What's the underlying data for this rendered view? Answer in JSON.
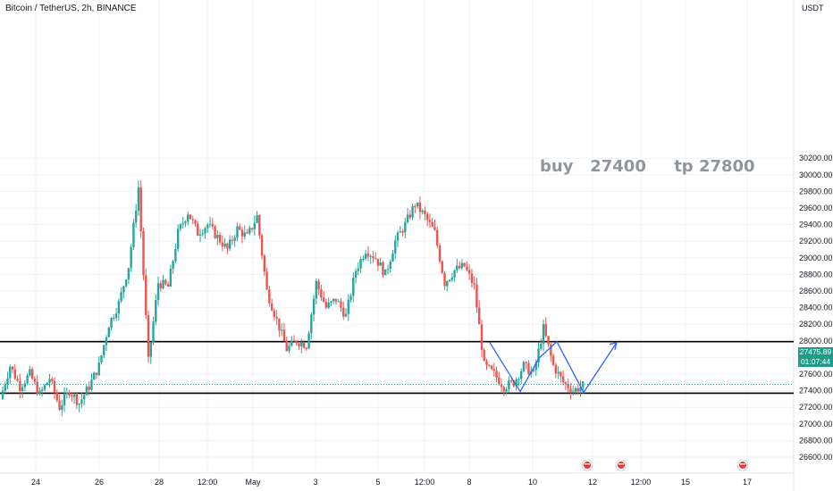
{
  "header": {
    "title": "Bitcoin / TetherUS, 2h, BINANCE"
  },
  "price_axis": {
    "unit": "USDT",
    "ticks": [
      "30200.00",
      "30000.00",
      "29800.00",
      "29600.00",
      "29400.00",
      "29200.00",
      "29000.00",
      "28800.00",
      "28600.00",
      "28400.00",
      "28200.00",
      "28000.00",
      "27800.00",
      "27600.00",
      "27400.00",
      "27200.00",
      "27000.00",
      "26800.00",
      "26600.00"
    ]
  },
  "time_axis": {
    "ticks": [
      "24",
      "26",
      "28",
      "12:00",
      "May",
      "3",
      "5",
      "12:00",
      "8",
      "10",
      "12",
      "12:00",
      "15",
      "17"
    ]
  },
  "annotation": {
    "text": "buy   27400     tp 27800"
  },
  "current_price": {
    "price": "27475.89",
    "countdown": "01:07:44"
  },
  "colors": {
    "up": "#26a69a",
    "down": "#ef5350",
    "arrow": "#2962ff",
    "level_line": "#000000",
    "price_tag": "#1f9d8a"
  },
  "chart_data": {
    "type": "candlestick",
    "title": "Bitcoin / TetherUS, 2h, BINANCE",
    "y_unit": "USDT",
    "ylim": [
      26500,
      30320
    ],
    "horizontal_levels": [
      27990,
      27370
    ],
    "current_price": 27475.89,
    "projection_path": [
      27980,
      27380,
      27800,
      27380,
      27990,
      27380,
      27980
    ],
    "x_tick_labels": [
      "24",
      "26",
      "28",
      "12:00",
      "May",
      "3",
      "5",
      "12:00",
      "8",
      "10",
      "12",
      "12:00",
      "15",
      "17"
    ],
    "price_path": [
      [
        27300,
        27700
      ],
      [
        27700,
        27450
      ],
      [
        27450,
        27600
      ],
      [
        27600,
        27350
      ],
      [
        27350,
        27550
      ],
      [
        27550,
        27200
      ],
      [
        27200,
        27400
      ],
      [
        27400,
        27250
      ],
      [
        27250,
        27450
      ],
      [
        27450,
        27700
      ],
      [
        27700,
        28200
      ],
      [
        28200,
        28450
      ],
      [
        28450,
        28900
      ],
      [
        28900,
        29850
      ],
      [
        29850,
        27750
      ],
      [
        27750,
        28700
      ],
      [
        28700,
        28650
      ],
      [
        28650,
        29300
      ],
      [
        29300,
        29550
      ],
      [
        29550,
        29300
      ],
      [
        29300,
        29400
      ],
      [
        29400,
        29250
      ],
      [
        29250,
        29100
      ],
      [
        29100,
        29350
      ],
      [
        29350,
        29250
      ],
      [
        29250,
        29500
      ],
      [
        29500,
        28600
      ],
      [
        28600,
        28250
      ],
      [
        28250,
        27900
      ],
      [
        27900,
        28000
      ],
      [
        28000,
        27950
      ],
      [
        27950,
        28700
      ],
      [
        28700,
        28400
      ],
      [
        28400,
        28500
      ],
      [
        28500,
        28300
      ],
      [
        28300,
        28850
      ],
      [
        28850,
        29100
      ],
      [
        29100,
        29000
      ],
      [
        29000,
        28800
      ],
      [
        28800,
        29200
      ],
      [
        29200,
        29400
      ],
      [
        29400,
        29650
      ],
      [
        29650,
        29500
      ],
      [
        29500,
        29300
      ],
      [
        29300,
        28700
      ],
      [
        28700,
        28850
      ],
      [
        28850,
        28900
      ],
      [
        28900,
        28650
      ],
      [
        28650,
        27700
      ],
      [
        27700,
        27600
      ],
      [
        27600,
        27450
      ],
      [
        27450,
        27500
      ],
      [
        27500,
        27700
      ],
      [
        27700,
        27600
      ],
      [
        27600,
        28150
      ],
      [
        28150,
        27700
      ],
      [
        27700,
        27500
      ],
      [
        27500,
        27400
      ],
      [
        27400,
        27460
      ]
    ]
  }
}
